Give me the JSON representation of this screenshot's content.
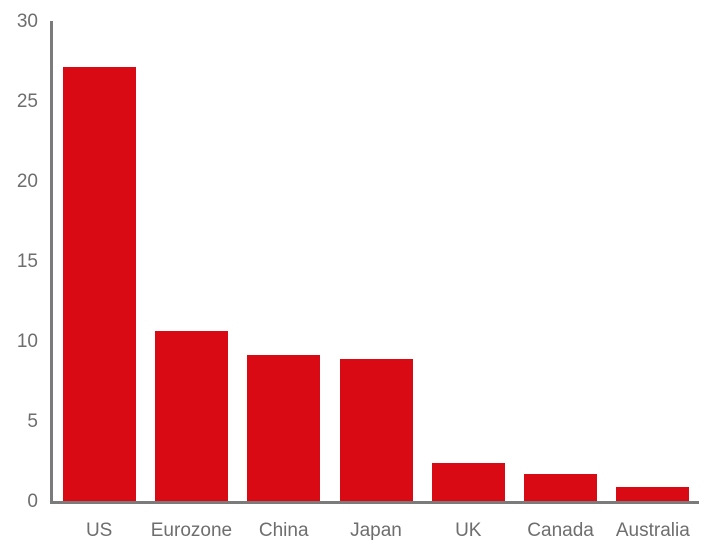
{
  "chart_data": {
    "type": "bar",
    "title": "",
    "xlabel": "",
    "ylabel": "",
    "categories": [
      "US",
      "Eurozone",
      "China",
      "Japan",
      "UK",
      "Canada",
      "Australia"
    ],
    "values": [
      27.1,
      10.6,
      9.1,
      8.9,
      2.4,
      1.7,
      0.9
    ],
    "ylim": [
      0,
      30
    ],
    "yticks": [
      0,
      5,
      10,
      15,
      20,
      25,
      30
    ],
    "grid": false,
    "legend": false,
    "bar_color": "#da0a15",
    "axis_color": "#7b7b7b",
    "label_color": "#6e6e6e",
    "background_color": "#ffffff"
  }
}
